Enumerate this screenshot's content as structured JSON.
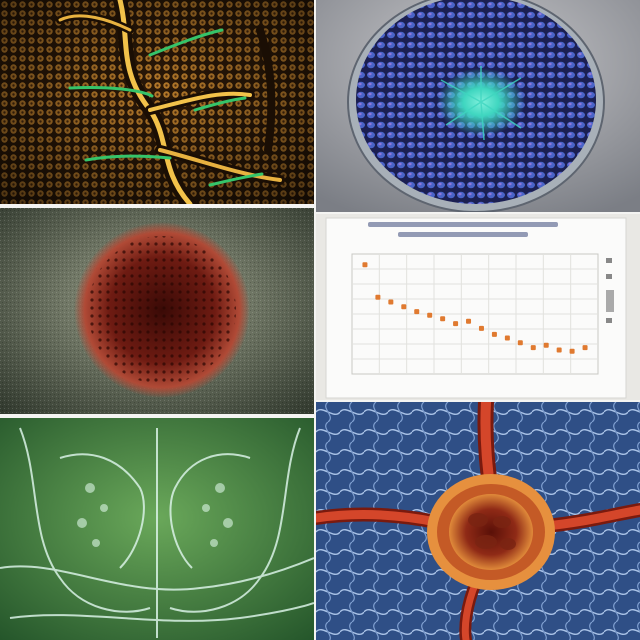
{
  "panels": [
    {
      "id": "cells",
      "subject": "microscopy-tissue"
    },
    {
      "id": "dish",
      "subject": "petri-dish-colony"
    },
    {
      "id": "sphere",
      "subject": "red-spherical-cell"
    },
    {
      "id": "chart",
      "subject": "scatter-plot"
    },
    {
      "id": "xray",
      "subject": "translucent-anatomy"
    },
    {
      "id": "heart",
      "subject": "organ-with-vessels"
    }
  ],
  "colors": {
    "cells_bg": "#3a2410",
    "cells_vein": "#f2c24a",
    "cells_fiber": "#35c46a",
    "dish_body": "#3b4fa0",
    "dish_center": "#3fd6c0",
    "sphere_core": "#6e1b12",
    "sphere_halo": "#b04a36",
    "chart_points": "#e07a30",
    "xray_bg": "#3f7a3c",
    "heart_bg": "#2f4f86",
    "heart_vessel": "#d4462a"
  },
  "chart_data": {
    "type": "scatter",
    "x": [
      1,
      2,
      3,
      4,
      5,
      6,
      7,
      8,
      9,
      10,
      11,
      12,
      13,
      14,
      15,
      16,
      17,
      18
    ],
    "y": [
      9.1,
      6.4,
      6.0,
      5.6,
      5.2,
      4.9,
      4.6,
      4.2,
      4.4,
      3.8,
      3.3,
      3.0,
      2.6,
      2.2,
      2.4,
      2.0,
      1.9,
      2.2
    ],
    "xlim": [
      0,
      19
    ],
    "ylim": [
      0,
      10
    ],
    "grid": true,
    "legend": "right"
  }
}
